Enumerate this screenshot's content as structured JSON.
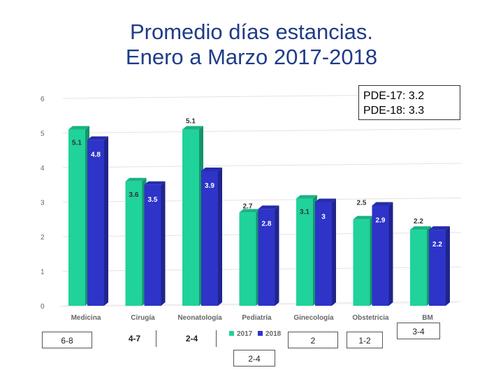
{
  "title_line1": "Promedio días estancias.",
  "title_line2": "Enero a Marzo 2017-2018",
  "pde_box": {
    "line1": "PDE-17: 3.2",
    "line2": "PDE-18: 3.3"
  },
  "ranges": {
    "medicina": "6-8",
    "cirugia": "4-7",
    "neonatologia": "2-4",
    "pediatria": "2-4",
    "ginecologia": "2",
    "obstetricia": "1-2",
    "bm": "3-4"
  },
  "colors": {
    "s2017": "#1fd39a",
    "s2018": "#2e34c8",
    "title": "#1f3c88"
  },
  "chart_data": {
    "type": "bar",
    "categories": [
      "Medicina",
      "Cirugía",
      "Neonatología",
      "Pediatría",
      "Ginecología",
      "Obstetricia",
      "BM"
    ],
    "series": [
      {
        "name": "2017",
        "values": [
          5.1,
          3.6,
          5.1,
          2.7,
          3.1,
          2.5,
          2.2
        ],
        "labels": [
          "5.1",
          "3.6",
          "5.1",
          "2.7",
          "3.1",
          "2.5",
          "2.2"
        ]
      },
      {
        "name": "2018",
        "values": [
          4.8,
          3.5,
          3.9,
          2.8,
          3,
          2.9,
          2.2
        ],
        "labels": [
          "4.8",
          "3.5",
          "3.9",
          "2.8",
          "3",
          "2.9",
          "2.2"
        ]
      }
    ],
    "ylim": [
      0,
      6
    ],
    "yticks": [
      "0",
      "1",
      "2",
      "3",
      "4",
      "5",
      "6"
    ],
    "legend": [
      "2017",
      "2018"
    ],
    "legend_position": "bottom"
  }
}
